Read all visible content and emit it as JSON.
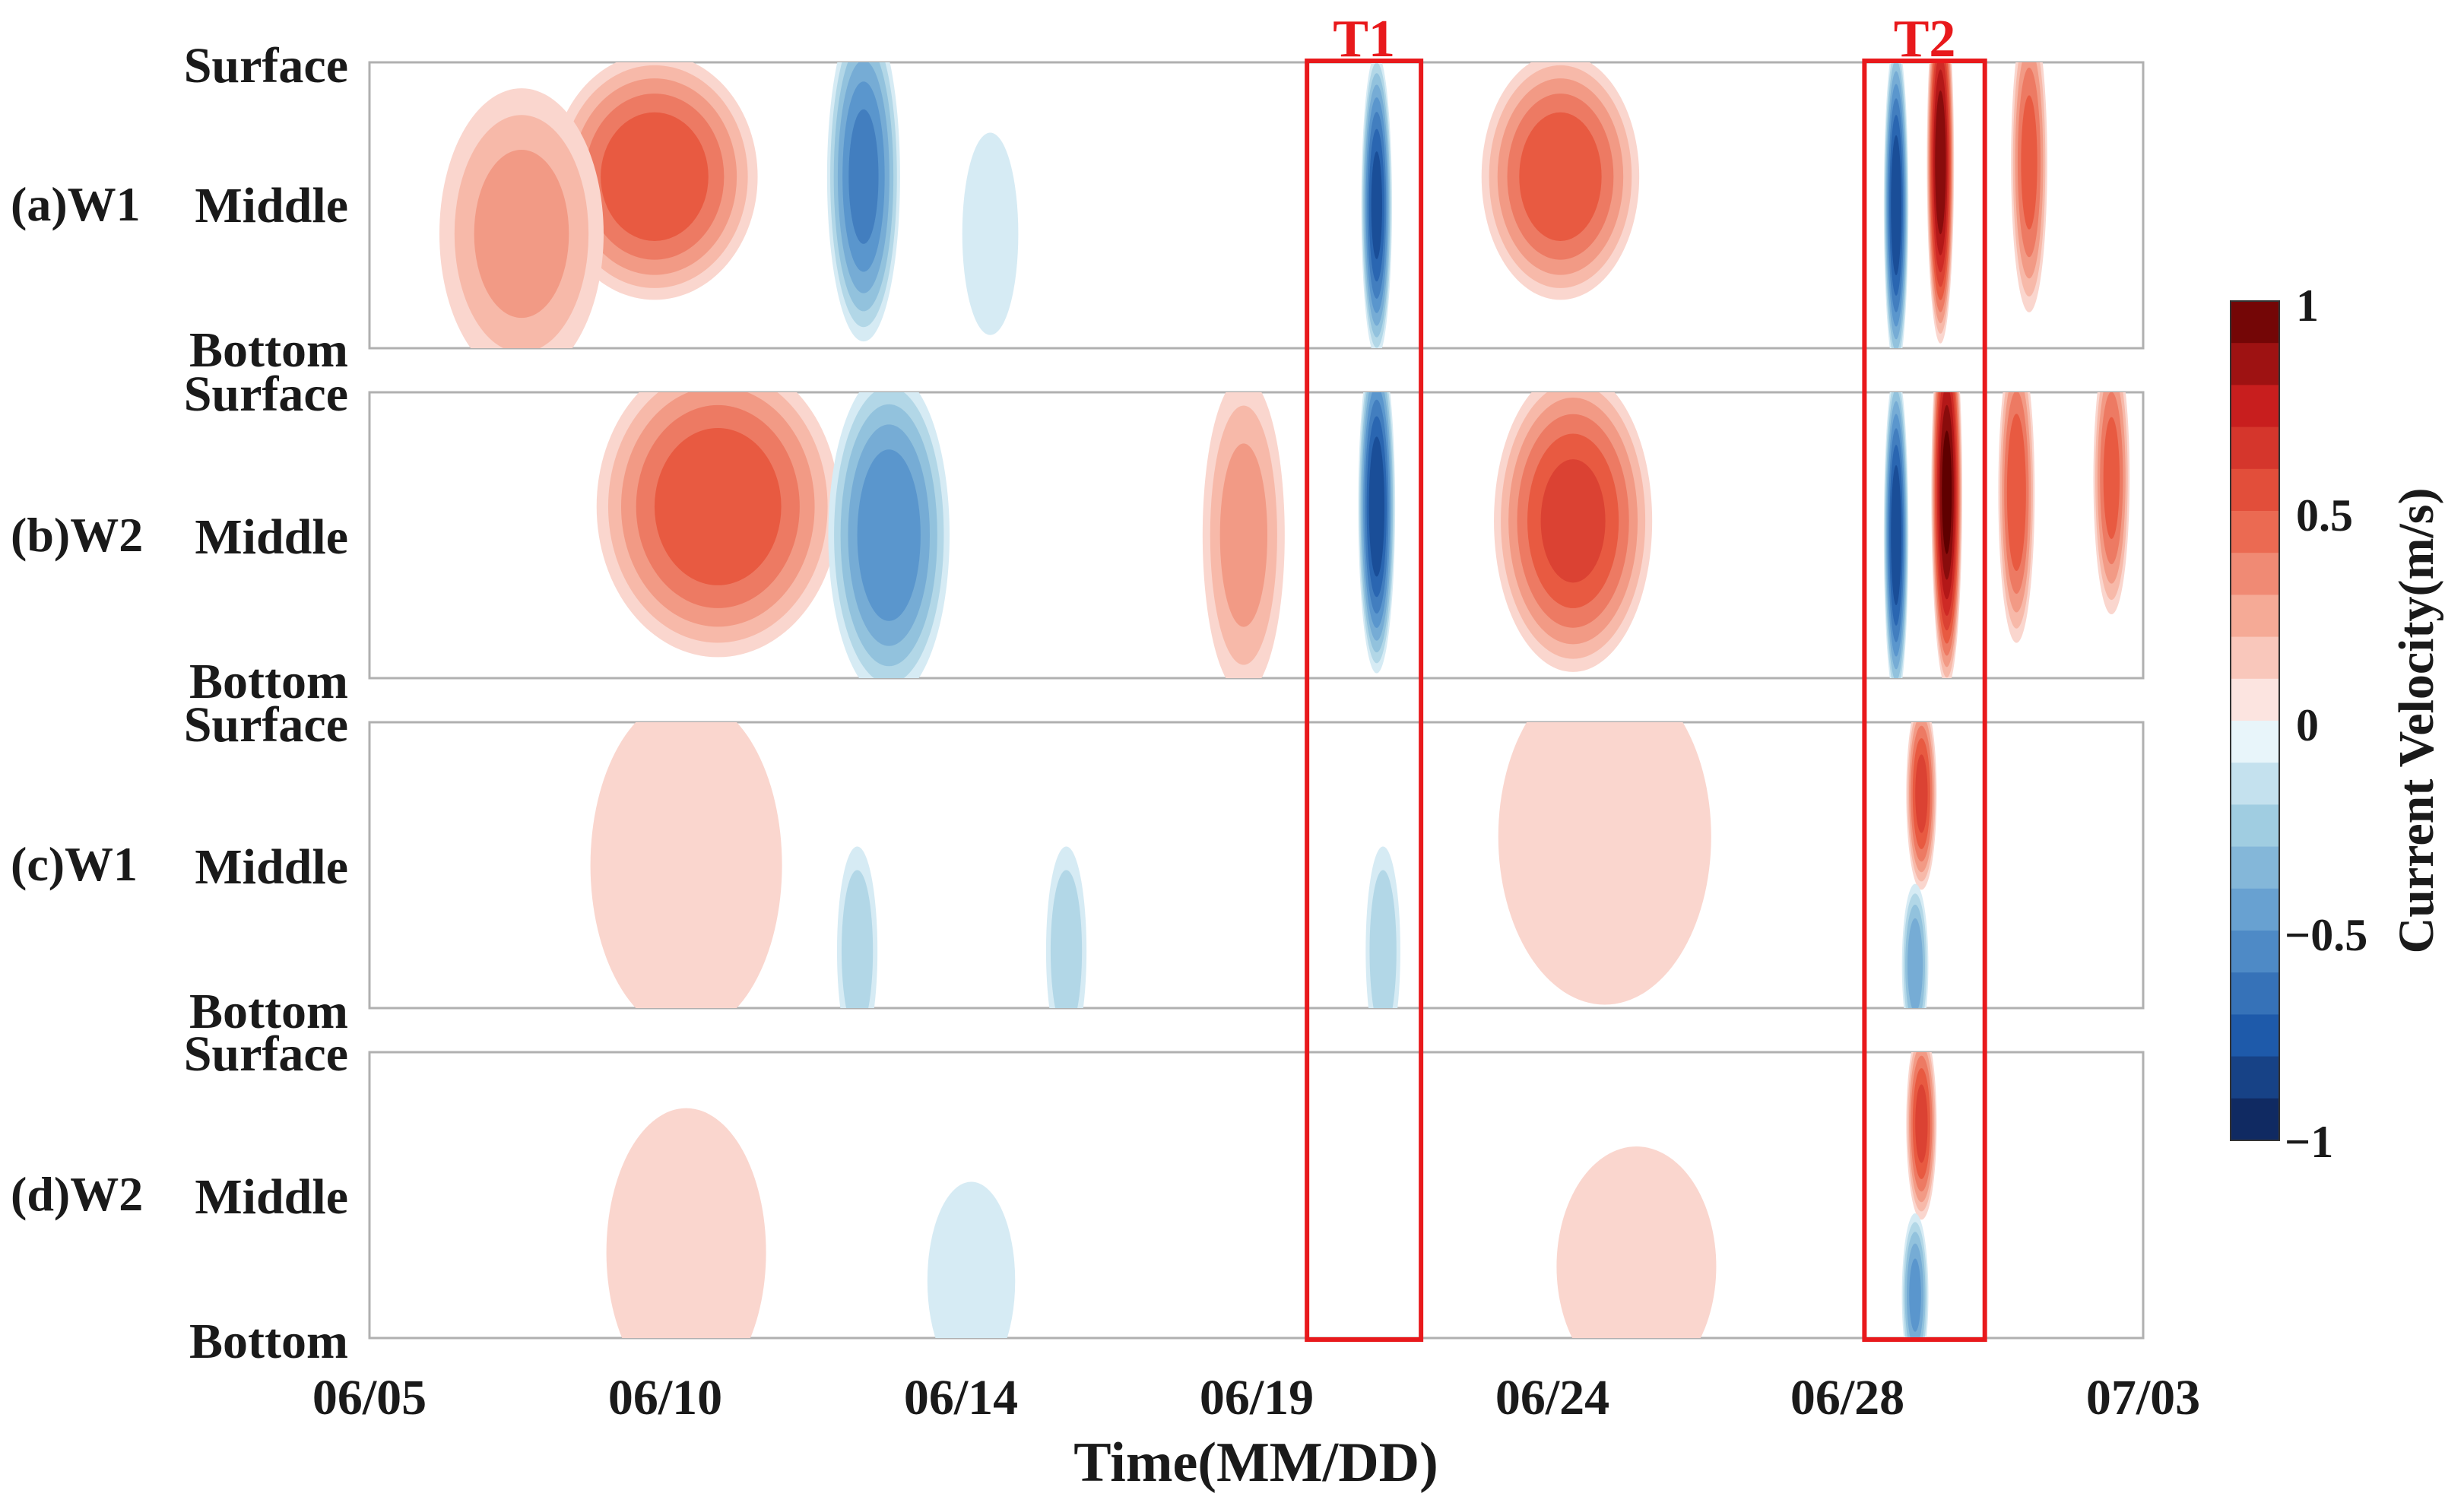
{
  "chart_data": {
    "type": "heatmap",
    "xlabel": "Time(MM/DD)",
    "x_ticks": [
      "06/05",
      "06/10",
      "06/14",
      "06/19",
      "06/24",
      "06/28",
      "07/03"
    ],
    "x_range_days": [
      0,
      28
    ],
    "y_ticks": [
      "Surface",
      "Middle",
      "Bottom"
    ],
    "panels": [
      {
        "id": "a",
        "label": "(a)W1"
      },
      {
        "id": "b",
        "label": "(b)W2"
      },
      {
        "id": "c",
        "label": "(c)W1"
      },
      {
        "id": "d",
        "label": "(d)W2"
      }
    ],
    "colorbar": {
      "label": "Current Velocity(m/s)",
      "range": [
        -1,
        1
      ],
      "ticks": [
        "1",
        "0.5",
        "0",
        "−0.5",
        "−1"
      ],
      "levels": 20
    },
    "highlight_boxes": [
      {
        "label": "T1",
        "start_day": 14.8,
        "end_day": 16.6,
        "color": "#e8191c"
      },
      {
        "label": "T2",
        "start_day": 23.6,
        "end_day": 25.5,
        "color": "#e8191c"
      }
    ],
    "features": [
      {
        "panel": "a",
        "day": 4.5,
        "width": 1.7,
        "depth": 0.4,
        "depth_width": 0.45,
        "value": 0.55
      },
      {
        "panel": "a",
        "day": 2.4,
        "width": 1.4,
        "depth": 0.6,
        "depth_width": 0.55,
        "value": 0.3
      },
      {
        "panel": "a",
        "day": 7.8,
        "width": 0.6,
        "depth": 0.4,
        "depth_width": 0.6,
        "value": -0.6
      },
      {
        "panel": "a",
        "day": 9.8,
        "width": 0.5,
        "depth": 0.6,
        "depth_width": 0.4,
        "value": -0.18
      },
      {
        "panel": "a",
        "day": 15.9,
        "width": 0.25,
        "depth": 0.5,
        "depth_width": 0.55,
        "value": -0.8
      },
      {
        "panel": "a",
        "day": 18.8,
        "width": 1.3,
        "depth": 0.4,
        "depth_width": 0.45,
        "value": 0.55
      },
      {
        "panel": "a",
        "day": 24.1,
        "width": 0.2,
        "depth": 0.5,
        "depth_width": 0.6,
        "value": -0.85
      },
      {
        "panel": "a",
        "day": 24.8,
        "width": 0.22,
        "depth": 0.35,
        "depth_width": 0.65,
        "value": 0.95
      },
      {
        "panel": "a",
        "day": 26.2,
        "width": 0.3,
        "depth": 0.35,
        "depth_width": 0.55,
        "value": 0.5
      },
      {
        "panel": "b",
        "day": 5.5,
        "width": 2.0,
        "depth": 0.4,
        "depth_width": 0.55,
        "value": 0.55
      },
      {
        "panel": "b",
        "day": 8.2,
        "width": 1.0,
        "depth": 0.5,
        "depth_width": 0.6,
        "value": -0.55
      },
      {
        "panel": "b",
        "day": 13.8,
        "width": 0.7,
        "depth": 0.5,
        "depth_width": 0.6,
        "value": 0.3
      },
      {
        "panel": "b",
        "day": 15.9,
        "width": 0.3,
        "depth": 0.4,
        "depth_width": 0.6,
        "value": -0.85
      },
      {
        "panel": "b",
        "day": 19.0,
        "width": 1.3,
        "depth": 0.45,
        "depth_width": 0.55,
        "value": 0.6
      },
      {
        "panel": "b",
        "day": 24.1,
        "width": 0.2,
        "depth": 0.5,
        "depth_width": 0.6,
        "value": -0.85
      },
      {
        "panel": "b",
        "day": 24.9,
        "width": 0.25,
        "depth": 0.35,
        "depth_width": 0.7,
        "value": 1.0
      },
      {
        "panel": "b",
        "day": 26.0,
        "width": 0.3,
        "depth": 0.35,
        "depth_width": 0.55,
        "value": 0.55
      },
      {
        "panel": "b",
        "day": 27.5,
        "width": 0.3,
        "depth": 0.3,
        "depth_width": 0.5,
        "value": 0.5
      },
      {
        "panel": "c",
        "day": 24.5,
        "width": 0.25,
        "depth": 0.25,
        "depth_width": 0.35,
        "value": 0.6
      },
      {
        "panel": "c",
        "day": 24.4,
        "width": 0.22,
        "depth": 0.85,
        "depth_width": 0.3,
        "value": -0.45
      },
      {
        "panel": "c",
        "day": 7.7,
        "width": 0.35,
        "depth": 0.8,
        "depth_width": 0.4,
        "value": -0.25
      },
      {
        "panel": "c",
        "day": 11.0,
        "width": 0.35,
        "depth": 0.8,
        "depth_width": 0.4,
        "value": -0.25
      },
      {
        "panel": "c",
        "day": 16.0,
        "width": 0.3,
        "depth": 0.8,
        "depth_width": 0.4,
        "value": -0.25
      },
      {
        "panel": "c",
        "day": 5.0,
        "width": 1.8,
        "depth": 0.5,
        "depth_width": 0.7,
        "value": 0.12
      },
      {
        "panel": "c",
        "day": 19.5,
        "width": 2.0,
        "depth": 0.4,
        "depth_width": 0.7,
        "value": 0.12
      },
      {
        "panel": "d",
        "day": 24.5,
        "width": 0.25,
        "depth": 0.25,
        "depth_width": 0.35,
        "value": 0.6
      },
      {
        "panel": "d",
        "day": 24.4,
        "width": 0.22,
        "depth": 0.85,
        "depth_width": 0.3,
        "value": -0.5
      },
      {
        "panel": "d",
        "day": 9.5,
        "width": 0.8,
        "depth": 0.8,
        "depth_width": 0.4,
        "value": -0.15
      },
      {
        "panel": "d",
        "day": 5.0,
        "width": 1.5,
        "depth": 0.7,
        "depth_width": 0.6,
        "value": 0.12
      },
      {
        "panel": "d",
        "day": 20.0,
        "width": 1.5,
        "depth": 0.75,
        "depth_width": 0.5,
        "value": 0.12
      }
    ]
  }
}
